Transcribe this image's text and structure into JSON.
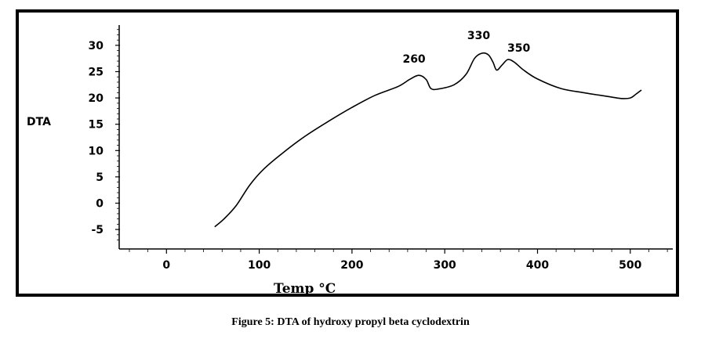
{
  "caption": "Figure 5: DTA of hydroxy propyl beta cyclodextrin",
  "chart_data": {
    "type": "line",
    "ylabel": "DTA",
    "xlabel": "Temp °C",
    "xlim": [
      -45,
      550
    ],
    "ylim": [
      -8,
      34
    ],
    "xticks": [
      0,
      100,
      200,
      300,
      400,
      500
    ],
    "yticks": [
      -5,
      0,
      5,
      10,
      15,
      20,
      25,
      30
    ],
    "grid": false,
    "line_color": "#000000",
    "series": [
      {
        "x": [
          52,
          62,
          75,
          90,
          105,
          125,
          150,
          175,
          200,
          225,
          250,
          262,
          272,
          280,
          285,
          293,
          310,
          323,
          332,
          340,
          347,
          352,
          356,
          362,
          368,
          375,
          385,
          400,
          425,
          450,
          475,
          490,
          500,
          506,
          512
        ],
        "y": [
          -4.5,
          -3,
          -0.5,
          3.5,
          6.5,
          9.5,
          12.8,
          15.6,
          18.2,
          20.5,
          22.2,
          23.5,
          24.3,
          23.5,
          21.8,
          21.7,
          22.5,
          24.5,
          27.5,
          28.5,
          28.2,
          26.8,
          25.3,
          26.3,
          27.3,
          26.8,
          25.3,
          23.6,
          21.8,
          21.0,
          20.3,
          19.9,
          20.0,
          20.7,
          21.5
        ]
      }
    ],
    "annotations": [
      {
        "text": "260",
        "x": 272,
        "y": 24.3
      },
      {
        "text": "330",
        "x": 340,
        "y": 28.5
      },
      {
        "text": "350",
        "x": 368,
        "y": 27.3
      }
    ]
  }
}
